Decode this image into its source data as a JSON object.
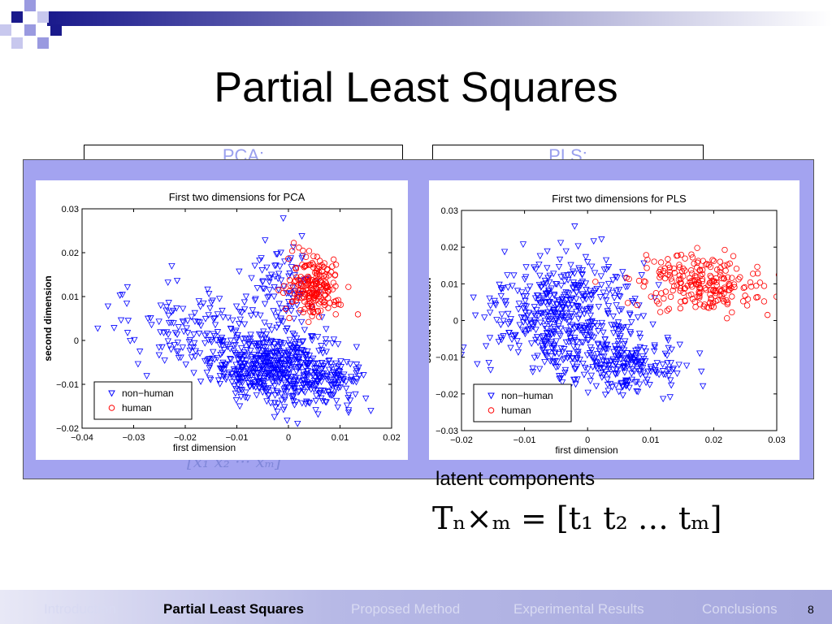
{
  "slide": {
    "title": "Partial Least Squares",
    "pca_header": "PCA:",
    "pls_header": "PLS:",
    "ghost_formula": "[x₁ x₂ ··· xₘ]",
    "latent_label": "latent components",
    "formula": "Tₙ×ₘ = [t₁ t₂ … tₘ]",
    "page_number": "8"
  },
  "nav": {
    "items": [
      {
        "label": "Introduction",
        "active": false
      },
      {
        "label": "Partial Least Squares",
        "active": true
      },
      {
        "label": "Proposed Method",
        "active": false
      },
      {
        "label": "Experimental Results",
        "active": false
      },
      {
        "label": "Conclusions",
        "active": false
      }
    ]
  },
  "colors": {
    "accent": "#a3a3f0",
    "deco_dark": "#1a1a8c",
    "deco_light": "#9a9ae0",
    "non_human": "#0000ff",
    "human": "#ff0000"
  },
  "chart_data": [
    {
      "type": "scatter",
      "title": "First two dimensions for PCA",
      "xlabel": "first dimension",
      "ylabel": "second dimension",
      "xlim": [
        -0.04,
        0.02
      ],
      "ylim": [
        -0.02,
        0.03
      ],
      "xticks": [
        -0.04,
        -0.03,
        -0.02,
        -0.01,
        0,
        0.01,
        0.02
      ],
      "xtick_labels": [
        "−0.04",
        "−0.03",
        "−0.02",
        "−0.01",
        "0",
        "0.01",
        "0.02"
      ],
      "yticks": [
        -0.02,
        -0.01,
        0,
        0.01,
        0.02,
        0.03
      ],
      "ytick_labels": [
        "−0.02",
        "−0.01",
        "0",
        "0.01",
        "0.02",
        "0.03"
      ],
      "grid": false,
      "legend_position": "bottom-left",
      "series": [
        {
          "name": "non−human",
          "marker": "triangle-down",
          "color": "#0000ff",
          "clusters": [
            {
              "cx": -0.003,
              "cy": -0.006,
              "sx": 0.006,
              "sy": 0.004,
              "n": 500
            },
            {
              "cx": -0.018,
              "cy": 0.003,
              "sx": 0.008,
              "sy": 0.005,
              "n": 150
            },
            {
              "cx": -0.001,
              "cy": 0.012,
              "sx": 0.004,
              "sy": 0.005,
              "n": 90
            },
            {
              "cx": 0.007,
              "cy": -0.01,
              "sx": 0.004,
              "sy": 0.003,
              "n": 120
            }
          ]
        },
        {
          "name": "human",
          "marker": "circle",
          "color": "#ff0000",
          "clusters": [
            {
              "cx": 0.005,
              "cy": 0.012,
              "sx": 0.0025,
              "sy": 0.0035,
              "n": 200
            }
          ]
        }
      ]
    },
    {
      "type": "scatter",
      "title": "First two dimensions for PLS",
      "xlabel": "first dimension",
      "ylabel": "second dimension",
      "xlim": [
        -0.02,
        0.03
      ],
      "ylim": [
        -0.03,
        0.03
      ],
      "xticks": [
        -0.02,
        -0.01,
        0,
        0.01,
        0.02,
        0.03
      ],
      "xtick_labels": [
        "−0.02",
        "−0.01",
        "0",
        "0.01",
        "0.02",
        "0.03"
      ],
      "yticks": [
        -0.03,
        -0.02,
        -0.01,
        0,
        0.01,
        0.02,
        0.03
      ],
      "ytick_labels": [
        "−0.03",
        "−0.02",
        "−0.01",
        "0",
        "0.01",
        "0.02",
        "0.03"
      ],
      "grid": false,
      "legend_position": "bottom-left",
      "series": [
        {
          "name": "non−human",
          "marker": "triangle-down",
          "color": "#0000ff",
          "clusters": [
            {
              "cx": -0.004,
              "cy": 0.001,
              "sx": 0.0055,
              "sy": 0.008,
              "n": 500
            },
            {
              "cx": 0.006,
              "cy": -0.012,
              "sx": 0.005,
              "sy": 0.004,
              "n": 200
            }
          ]
        },
        {
          "name": "human",
          "marker": "circle",
          "color": "#ff0000",
          "clusters": [
            {
              "cx": 0.018,
              "cy": 0.01,
              "sx": 0.005,
              "sy": 0.004,
              "n": 220
            }
          ]
        }
      ]
    }
  ]
}
